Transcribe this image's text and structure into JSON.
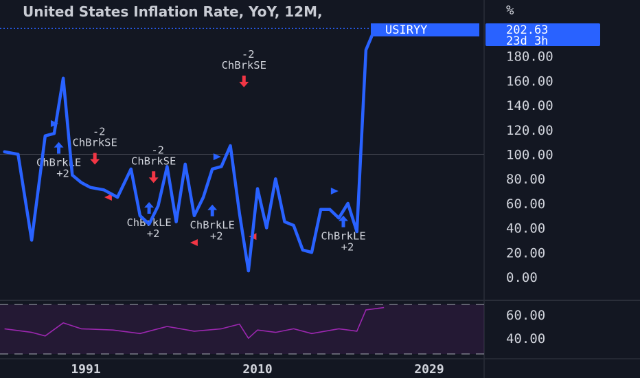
{
  "title": "United States Inflation Rate, YoY, 12M,",
  "unit": "%",
  "symbol_tag": "USIRYY",
  "last_value": "202.63",
  "countdown": "23d 3h",
  "colors": {
    "line": "#2962ff",
    "buy": "#2962ff",
    "sell": "#f23645",
    "rsi": "#9c27b0",
    "bg": "#131722"
  },
  "chart_data": [
    {
      "type": "line",
      "title": "United States Inflation Rate, YoY, 12M,",
      "ylim": [
        -12,
        210
      ],
      "x_ticks": [
        "1991",
        "2010",
        "2029"
      ],
      "y_ticks": [
        "0.00",
        "20.00",
        "40.00",
        "60.00",
        "80.00",
        "100.00",
        "120.00",
        "140.00",
        "160.00",
        "180.00"
      ],
      "series": [
        {
          "x": [
            1982,
            1983.5,
            1985,
            1986.5,
            1987.5,
            1988.5,
            1989.5,
            1990.5,
            1991.5,
            1993,
            1994.5,
            1996,
            1997,
            1998,
            1999,
            2000,
            2001,
            2002,
            2003,
            2004,
            2005,
            2006,
            2007,
            2008,
            2009,
            2010,
            2011,
            2012,
            2013,
            2014,
            2015,
            2016,
            2017,
            2018,
            2019,
            2020,
            2021,
            2022,
            2023,
            2024
          ],
          "values": [
            102,
            100,
            30,
            115,
            117,
            162,
            83,
            77,
            73,
            71,
            65,
            88,
            50,
            43,
            58,
            90,
            45,
            92,
            50,
            65,
            88,
            90,
            107,
            52,
            5,
            72,
            40,
            80,
            45,
            42,
            22,
            20,
            55,
            55,
            48,
            60,
            37,
            185,
            202.63,
            202.63
          ]
        }
      ],
      "signals": [
        {
          "label": "ChBrkLE",
          "size": "+2",
          "side": "long",
          "year": 1988.0,
          "value": 105
        },
        {
          "label": "ChBrkSE",
          "size": "-2",
          "side": "short",
          "year": 1992.0,
          "value": 100
        },
        {
          "label": "ChBrkSE",
          "size": "-2",
          "side": "short",
          "year": 1998.5,
          "value": 85
        },
        {
          "label": "ChBrkLE",
          "size": "+2",
          "side": "long",
          "year": 1998.0,
          "value": 56
        },
        {
          "label": "ChBrkLE",
          "size": "+2",
          "side": "long",
          "year": 2005.0,
          "value": 54
        },
        {
          "label": "ChBrkSE",
          "size": "-2",
          "side": "short",
          "year": 2008.5,
          "value": 163
        },
        {
          "label": "ChBrkLE",
          "size": "+2",
          "side": "long",
          "year": 2019.5,
          "value": 45
        }
      ],
      "markers": [
        {
          "direction": "right",
          "color": "buy",
          "year": 1987.5,
          "value": 125
        },
        {
          "direction": "right",
          "color": "buy",
          "year": 2005.5,
          "value": 98
        },
        {
          "direction": "right",
          "color": "buy",
          "year": 2018.5,
          "value": 70
        },
        {
          "direction": "left",
          "color": "sell",
          "year": 1993.5,
          "value": 65
        },
        {
          "direction": "left",
          "color": "sell",
          "year": 2003.0,
          "value": 28
        },
        {
          "direction": "left",
          "color": "sell",
          "year": 2009.5,
          "value": 33
        }
      ]
    },
    {
      "type": "line",
      "ylim": [
        28,
        76
      ],
      "y_ticks": [
        "60.00",
        "40.00"
      ],
      "levels": [
        70,
        30
      ],
      "series": [
        {
          "x": [
            1982,
            1985,
            1986.5,
            1988.5,
            1990.5,
            1994,
            1997,
            2000,
            2003,
            2006,
            2008,
            2009,
            2010,
            2012,
            2014,
            2016,
            2019,
            2021,
            2022,
            2024
          ],
          "values": [
            48,
            45,
            42,
            53,
            48,
            47,
            44,
            50,
            46,
            48,
            52,
            40,
            47,
            45,
            48,
            44,
            48,
            46,
            64,
            66
          ]
        }
      ]
    }
  ]
}
